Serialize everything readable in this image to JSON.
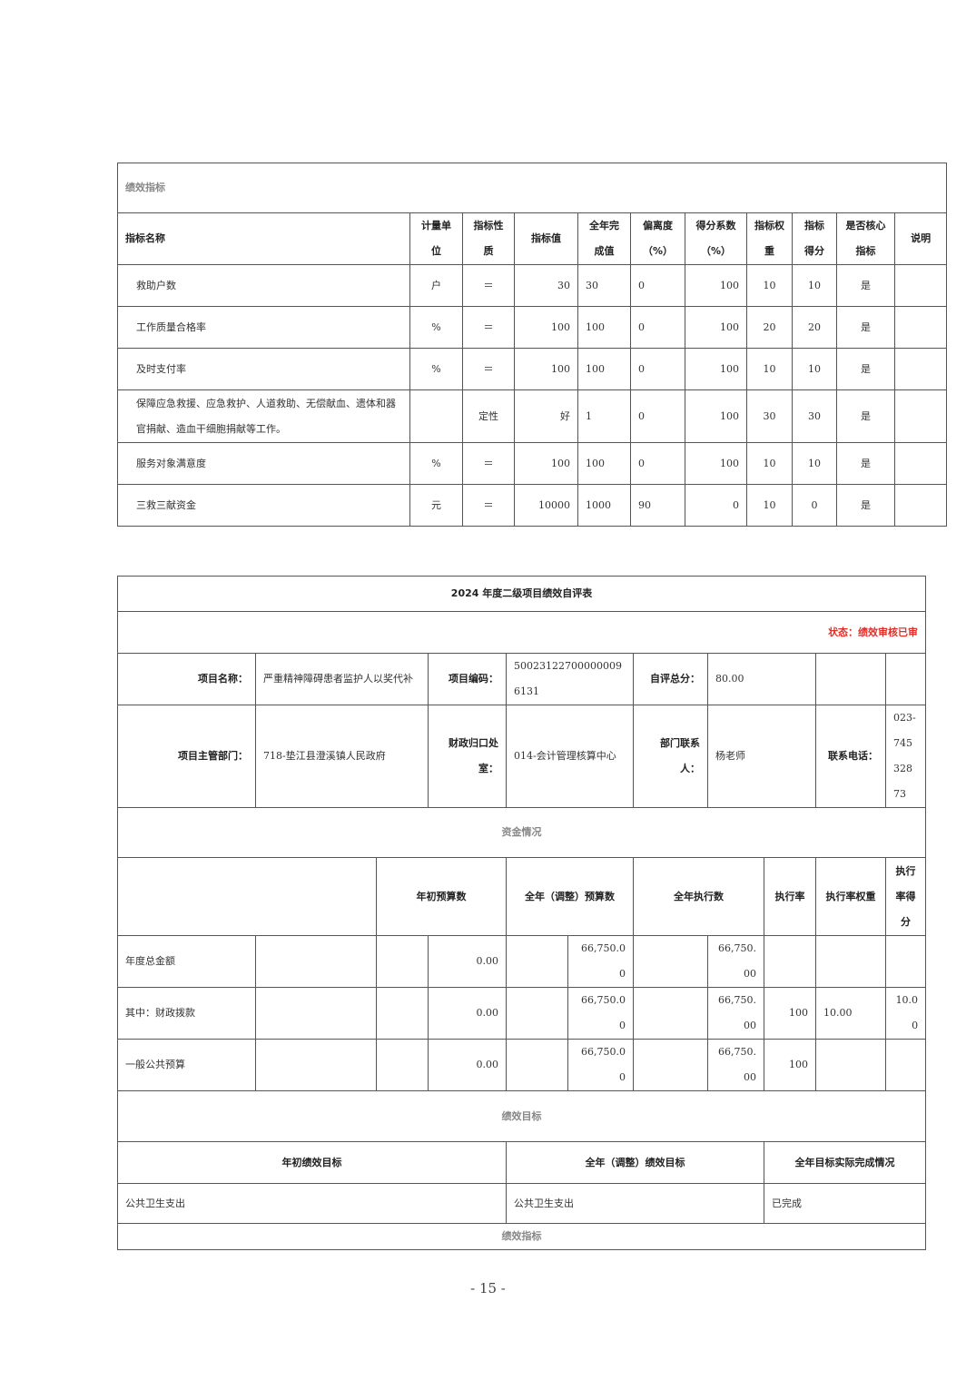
{
  "indicators": {
    "section_title": "绩效指标",
    "headers": [
      "指标名称",
      "计量单位",
      "指标性质",
      "指标值",
      "全年完成值",
      "偏离度（%）",
      "得分系数（%）",
      "指标权重",
      "指标得分",
      "是否核心指标",
      "说明"
    ],
    "rows": [
      [
        "救助户数",
        "户",
        "＝",
        "30",
        "30",
        "0",
        "100",
        "10",
        "10",
        "是",
        ""
      ],
      [
        "工作质量合格率",
        "%",
        "＝",
        "100",
        "100",
        "0",
        "100",
        "20",
        "20",
        "是",
        ""
      ],
      [
        "及时支付率",
        "%",
        "＝",
        "100",
        "100",
        "0",
        "100",
        "10",
        "10",
        "是",
        ""
      ],
      [
        "保障应急救援、应急救护、人道救助、无偿献血、遗体和器官捐献、造血干细胞捐献等工作。",
        "",
        "定性",
        "好",
        "1",
        "0",
        "100",
        "30",
        "30",
        "是",
        ""
      ],
      [
        "服务对象满意度",
        "%",
        "＝",
        "100",
        "100",
        "0",
        "100",
        "10",
        "10",
        "是",
        ""
      ],
      [
        "三救三献资金",
        "元",
        "＝",
        "10000",
        "1000",
        "90",
        "0",
        "10",
        "0",
        "是",
        ""
      ]
    ]
  },
  "form": {
    "title": "2024 年度二级项目绩效自评表",
    "status": "状态：绩效审核已审",
    "project_name_label": "项目名称：",
    "project_name": "严重精神障碍患者监护人以奖代补",
    "project_code_label": "项目编码：",
    "project_code": "500231227000000096131",
    "score_label": "自评总分：",
    "score": "80.00",
    "dept_label": "项目主管部门：",
    "dept": "718-垫江县澄溪镇人民政府",
    "finance_label": "财政归口处室：",
    "finance": "014-会计管理核算中心",
    "contact_label": "部门联系人：",
    "contact": "杨老师",
    "phone_label": "联系电话：",
    "phone": "023-74532873",
    "funds_title": "资金情况",
    "funds_headers": [
      "年初预算数",
      "全年（调整）预算数",
      "全年执行数",
      "执行率",
      "执行率权重",
      "执行率得分"
    ],
    "funds_rows": [
      {
        "label": "年度总金额",
        "initial": "0.00",
        "adjusted": "66,750.00",
        "executed": "66,750.00",
        "rate": "",
        "weight": "",
        "score": ""
      },
      {
        "label": "其中：财政拨款",
        "initial": "0.00",
        "adjusted": "66,750.00",
        "executed": "66,750.00",
        "rate": "100",
        "weight": "10.00",
        "score": "10.00"
      },
      {
        "label": "一般公共预算",
        "initial": "0.00",
        "adjusted": "66,750.00",
        "executed": "66,750.00",
        "rate": "100",
        "weight": "",
        "score": ""
      }
    ],
    "goals_title": "绩效目标",
    "goals_headers": [
      "年初绩效目标",
      "全年（调整）绩效目标",
      "全年目标实际完成情况"
    ],
    "goals_row": [
      "公共卫生支出",
      "公共卫生支出",
      "已完成"
    ],
    "indicators_title": "绩效指标"
  },
  "page_number": "- 15 -"
}
